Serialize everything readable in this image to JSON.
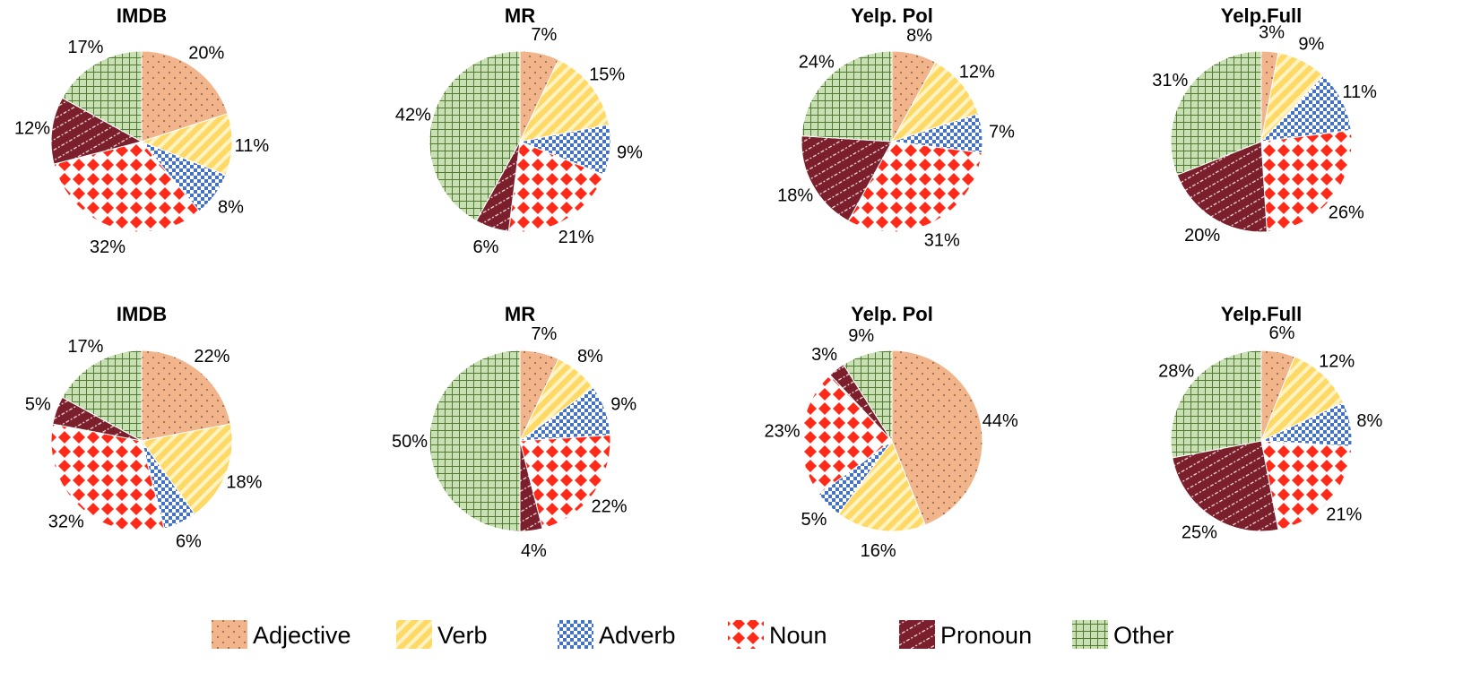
{
  "legend": {
    "placement": "bottom",
    "items": [
      {
        "name": "Adjective",
        "pattern": "dots",
        "color": "#F2B48A"
      },
      {
        "name": "Verb",
        "pattern": "diagonal-stripes",
        "color": "#FFD966"
      },
      {
        "name": "Adverb",
        "pattern": "checker",
        "color": "#4472C4"
      },
      {
        "name": "Noun",
        "pattern": "diamond-grid",
        "color": "#FF2A1A"
      },
      {
        "name": "Pronoun",
        "pattern": "dashed-stripes",
        "color": "#7A1F2B"
      },
      {
        "name": "Other",
        "pattern": "grid",
        "color": "#A9D18E"
      }
    ]
  },
  "chart_data": [
    {
      "type": "pie",
      "title": "IMDB",
      "categories": [
        "Adjective",
        "Verb",
        "Adverb",
        "Noun",
        "Pronoun",
        "Other"
      ],
      "values": [
        20,
        11,
        8,
        32,
        12,
        17
      ],
      "labels": [
        "20%",
        "11%",
        "8%",
        "32%",
        "12%",
        "17%"
      ]
    },
    {
      "type": "pie",
      "title": "MR",
      "categories": [
        "Adjective",
        "Verb",
        "Adverb",
        "Noun",
        "Pronoun",
        "Other"
      ],
      "values": [
        7,
        15,
        9,
        21,
        6,
        42
      ],
      "labels": [
        "7%",
        "15%",
        "9%",
        "21%",
        "6%",
        "42%"
      ]
    },
    {
      "type": "pie",
      "title": "Yelp. Pol",
      "categories": [
        "Adjective",
        "Verb",
        "Adverb",
        "Noun",
        "Pronoun",
        "Other"
      ],
      "values": [
        8,
        12,
        7,
        31,
        18,
        24
      ],
      "labels": [
        "8%",
        "12%",
        "7%",
        "31%",
        "18%",
        "24%"
      ]
    },
    {
      "type": "pie",
      "title": "Yelp.Full",
      "categories": [
        "Adjective",
        "Verb",
        "Adverb",
        "Noun",
        "Pronoun",
        "Other"
      ],
      "values": [
        3,
        9,
        11,
        26,
        20,
        31
      ],
      "labels": [
        "3%",
        "9%",
        "11%",
        "26%",
        "20%",
        "31%"
      ]
    },
    {
      "type": "pie",
      "title": "IMDB",
      "categories": [
        "Adjective",
        "Verb",
        "Adverb",
        "Noun",
        "Pronoun",
        "Other"
      ],
      "values": [
        22,
        18,
        6,
        32,
        5,
        17
      ],
      "labels": [
        "22%",
        "18%",
        "6%",
        "32%",
        "5%",
        "17%"
      ]
    },
    {
      "type": "pie",
      "title": "MR",
      "categories": [
        "Adjective",
        "Verb",
        "Adverb",
        "Noun",
        "Pronoun",
        "Other"
      ],
      "values": [
        7,
        8,
        9,
        22,
        4,
        50
      ],
      "labels": [
        "7%",
        "8%",
        "9%",
        "22%",
        "4%",
        "50%"
      ]
    },
    {
      "type": "pie",
      "title": "Yelp. Pol",
      "categories": [
        "Adjective",
        "Verb",
        "Adverb",
        "Noun",
        "Pronoun",
        "Other"
      ],
      "values": [
        44,
        16,
        5,
        23,
        3,
        9
      ],
      "labels": [
        "44%",
        "16%",
        "5%",
        "23%",
        "3%",
        "9%"
      ]
    },
    {
      "type": "pie",
      "title": "Yelp.Full",
      "categories": [
        "Adjective",
        "Verb",
        "Adverb",
        "Noun",
        "Pronoun",
        "Other"
      ],
      "values": [
        6,
        12,
        8,
        21,
        25,
        28
      ],
      "labels": [
        "6%",
        "12%",
        "8%",
        "21%",
        "25%",
        "28%"
      ]
    }
  ]
}
